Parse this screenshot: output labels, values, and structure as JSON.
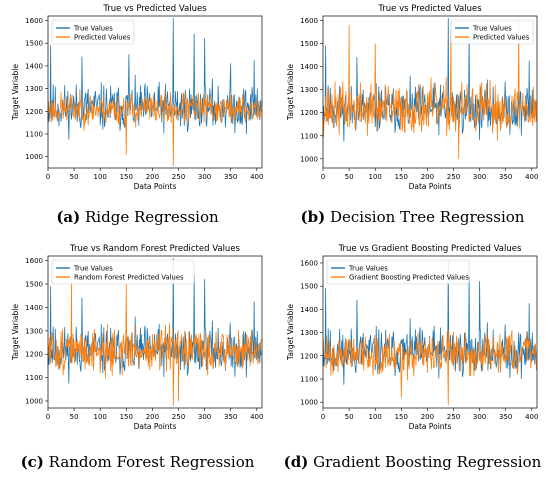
{
  "colors": {
    "true_series": "#1f77b4",
    "pred_series": "#ff7f0e"
  },
  "captions": [
    {
      "letter": "(a)",
      "text": " Ridge Regression"
    },
    {
      "letter": "(b)",
      "text": " Decision Tree Regression"
    },
    {
      "letter": "(c)",
      "text": " Random Forest Regression"
    },
    {
      "letter": "(d)",
      "text": " Gradient Boosting Regression"
    }
  ],
  "chart_data": [
    {
      "type": "line",
      "title": "True vs Predicted Values",
      "xlabel": "Data Points",
      "ylabel": "Target Variable",
      "xlim": [
        0,
        410
      ],
      "ylim": [
        950,
        1620
      ],
      "xticks": [
        0,
        50,
        100,
        150,
        200,
        250,
        300,
        350,
        400
      ],
      "yticks": [
        1000,
        1100,
        1200,
        1300,
        1400,
        1500,
        1600
      ],
      "legend": "top-left",
      "grid": false,
      "series": [
        {
          "name": "True Values",
          "color": "#1f77b4",
          "style": "noisy",
          "n": 410,
          "mean": 1215,
          "spread": 95,
          "seed": 11,
          "peaks": [
            [
              5,
              1490
            ],
            [
              65,
              1440
            ],
            [
              155,
              1450
            ],
            [
              240,
              1610
            ],
            [
              280,
              1540
            ],
            [
              300,
              1520
            ],
            [
              350,
              1410
            ],
            [
              395,
              1425
            ]
          ]
        },
        {
          "name": "Predicted Values",
          "color": "#ff7f0e",
          "style": "smooth",
          "n": 410,
          "mean": 1210,
          "spread": 75,
          "seed": 23,
          "peaks": [
            [
              240,
              960
            ],
            [
              150,
              1010
            ]
          ]
        }
      ]
    },
    {
      "type": "line",
      "title": "True vs Predicted Values",
      "xlabel": "Data Points",
      "ylabel": "Target Variable",
      "xlim": [
        0,
        410
      ],
      "ylim": [
        960,
        1620
      ],
      "xticks": [
        0,
        50,
        100,
        150,
        200,
        250,
        300,
        350,
        400
      ],
      "yticks": [
        1000,
        1100,
        1200,
        1300,
        1400,
        1500,
        1600
      ],
      "legend": "top-right",
      "grid": false,
      "series": [
        {
          "name": "True Values",
          "color": "#1f77b4",
          "style": "noisy",
          "n": 410,
          "mean": 1215,
          "spread": 95,
          "seed": 11,
          "peaks": [
            [
              5,
              1490
            ],
            [
              65,
              1440
            ],
            [
              240,
              1610
            ],
            [
              280,
              1540
            ],
            [
              395,
              1425
            ]
          ]
        },
        {
          "name": "Predicted Values",
          "color": "#ff7f0e",
          "style": "noisy",
          "n": 410,
          "mean": 1215,
          "spread": 100,
          "seed": 37,
          "peaks": [
            [
              50,
              1580
            ],
            [
              245,
              1560
            ],
            [
              375,
              1600
            ],
            [
              100,
              1500
            ],
            [
              260,
              1000
            ]
          ]
        }
      ]
    },
    {
      "type": "line",
      "title": "True vs Random Forest Predicted Values",
      "xlabel": "Data Points",
      "ylabel": "Target Variable",
      "xlim": [
        0,
        410
      ],
      "ylim": [
        970,
        1620
      ],
      "xticks": [
        0,
        50,
        100,
        150,
        200,
        250,
        300,
        350,
        400
      ],
      "yticks": [
        1000,
        1100,
        1200,
        1300,
        1400,
        1500,
        1600
      ],
      "legend": "top-left",
      "grid": false,
      "series": [
        {
          "name": "True Values",
          "color": "#1f77b4",
          "style": "noisy",
          "n": 410,
          "mean": 1215,
          "spread": 95,
          "seed": 11,
          "peaks": [
            [
              5,
              1490
            ],
            [
              65,
              1440
            ],
            [
              240,
              1610
            ],
            [
              280,
              1540
            ],
            [
              300,
              1520
            ],
            [
              395,
              1425
            ]
          ]
        },
        {
          "name": "Random Forest Predicted Values",
          "color": "#ff7f0e",
          "style": "noisy",
          "n": 410,
          "mean": 1215,
          "spread": 85,
          "seed": 51,
          "peaks": [
            [
              45,
              1510
            ],
            [
              150,
              1500
            ],
            [
              250,
              1000
            ],
            [
              240,
              980
            ]
          ]
        }
      ]
    },
    {
      "type": "line",
      "title": "True vs Gradient Boosting Predicted Values",
      "xlabel": "Data Points",
      "ylabel": "Target Variable",
      "xlim": [
        0,
        410
      ],
      "ylim": [
        975,
        1630
      ],
      "xticks": [
        0,
        50,
        100,
        150,
        200,
        250,
        300,
        350,
        400
      ],
      "yticks": [
        1000,
        1100,
        1200,
        1300,
        1400,
        1500,
        1600
      ],
      "legend": "top-left",
      "grid": false,
      "series": [
        {
          "name": "True Values",
          "color": "#1f77b4",
          "style": "noisy",
          "n": 410,
          "mean": 1215,
          "spread": 95,
          "seed": 11,
          "peaks": [
            [
              5,
              1490
            ],
            [
              65,
              1440
            ],
            [
              240,
              1610
            ],
            [
              280,
              1540
            ],
            [
              300,
              1520
            ],
            [
              395,
              1425
            ]
          ]
        },
        {
          "name": "Gradient Boosting Predicted Values",
          "color": "#ff7f0e",
          "style": "noisy",
          "n": 410,
          "mean": 1210,
          "spread": 80,
          "seed": 63,
          "peaks": [
            [
              240,
              990
            ],
            [
              150,
              1020
            ]
          ]
        }
      ]
    }
  ]
}
